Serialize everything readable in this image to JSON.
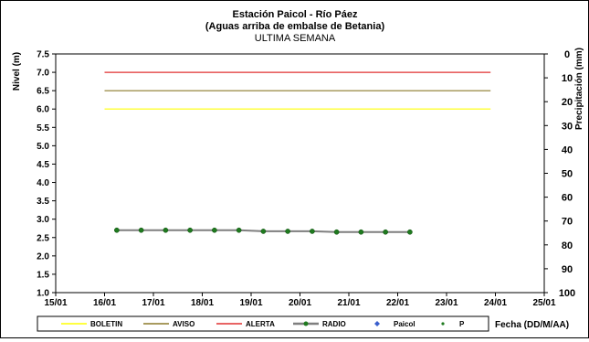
{
  "chart_data": {
    "type": "line",
    "title": "Estación Paicol  - Río Páez",
    "subtitle": "(Aguas arriba de embalse de Betania)",
    "subtitle2": "ULTIMA SEMANA",
    "ylabel": "Nivel (m)",
    "y2label": "Precipitación (mm)",
    "xlabel": "Fecha  (DD/M/AA)",
    "ylim": [
      1.0,
      7.5
    ],
    "y2lim": [
      0,
      100
    ],
    "y2_inverted": true,
    "xlim": [
      0,
      10
    ],
    "x_ticks": [
      "15/01",
      "16/01",
      "17/01",
      "18/01",
      "19/01",
      "20/01",
      "21/01",
      "22/01",
      "23/01",
      "24/01",
      "25/01"
    ],
    "y_ticks": [
      "1.0",
      "1.5",
      "2.0",
      "2.5",
      "3.0",
      "3.5",
      "4.0",
      "4.5",
      "5.0",
      "5.5",
      "6.0",
      "6.5",
      "7.0",
      "7.5"
    ],
    "y2_ticks": [
      "0",
      "10",
      "20",
      "30",
      "40",
      "50",
      "60",
      "70",
      "80",
      "90",
      "100"
    ],
    "grid": false,
    "legend_position": "bottom",
    "series": [
      {
        "name": "BOLETIN",
        "color": "#ffff00",
        "x": [
          1.0,
          8.9
        ],
        "y": [
          6.0,
          6.0
        ]
      },
      {
        "name": "AVISO",
        "color": "#8b7a2a",
        "x": [
          1.0,
          8.9
        ],
        "y": [
          6.5,
          6.5
        ]
      },
      {
        "name": "ALERTA",
        "color": "#e03030",
        "x": [
          1.0,
          8.9
        ],
        "y": [
          7.0,
          7.0
        ]
      },
      {
        "name": "RADIO",
        "color": "#7f7f7f",
        "marker_color": "#1f7a1f",
        "x": [
          1.25,
          1.75,
          2.25,
          2.75,
          3.25,
          3.75,
          4.25,
          4.75,
          5.25,
          5.75,
          6.25,
          6.75,
          7.25
        ],
        "y": [
          2.7,
          2.7,
          2.7,
          2.7,
          2.7,
          2.7,
          2.67,
          2.67,
          2.67,
          2.65,
          2.65,
          2.65,
          2.65
        ]
      },
      {
        "name": "Paicol",
        "color": "#3a5fcd",
        "x": [],
        "y": []
      },
      {
        "name": "P",
        "color": "#1f7a1f",
        "x": [],
        "y": []
      }
    ]
  }
}
